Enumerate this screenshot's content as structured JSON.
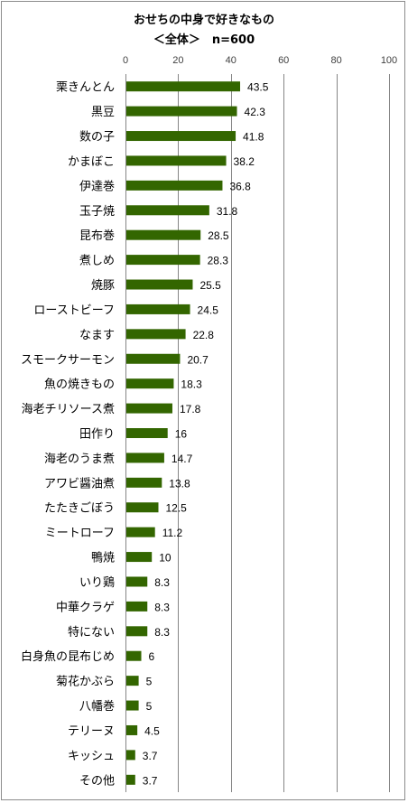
{
  "chart_data": {
    "type": "bar",
    "orientation": "horizontal",
    "title": "おせちの中身で好きなもの",
    "subtitle": "＜全体＞　n=600",
    "xlim": [
      0,
      100
    ],
    "xticks": [
      0,
      20,
      40,
      60,
      80,
      100
    ],
    "grid": true,
    "legend": "none",
    "bar_color": "#336600",
    "categories": [
      "栗きんとん",
      "黒豆",
      "数の子",
      "かまぼこ",
      "伊達巻",
      "玉子焼",
      "昆布巻",
      "煮しめ",
      "焼豚",
      "ローストビーフ",
      "なます",
      "スモークサーモン",
      "魚の焼きもの",
      "海老チリソース煮",
      "田作り",
      "海老のうま煮",
      "アワビ醤油煮",
      "たたきごぼう",
      "ミートローフ",
      "鴨焼",
      "いり鶏",
      "中華クラゲ",
      "特にない",
      "白身魚の昆布じめ",
      "菊花かぶら",
      "八幡巻",
      "テリーヌ",
      "キッシュ",
      "その他"
    ],
    "values": [
      43.5,
      42.3,
      41.8,
      38.2,
      36.8,
      31.8,
      28.5,
      28.3,
      25.5,
      24.5,
      22.8,
      20.7,
      18.3,
      17.8,
      16,
      14.7,
      13.8,
      12.5,
      11.2,
      10,
      8.3,
      8.3,
      8.3,
      6,
      5,
      5,
      4.5,
      3.7,
      3.7
    ],
    "value_labels": [
      "43.5",
      "42.3",
      "41.8",
      "38.2",
      "36.8",
      "31.8",
      "28.5",
      "28.3",
      "25.5",
      "24.5",
      "22.8",
      "20.7",
      "18.3",
      "17.8",
      "16",
      "14.7",
      "13.8",
      "12.5",
      "11.2",
      "10",
      "8.3",
      "8.3",
      "8.3",
      "6",
      "5",
      "5",
      "4.5",
      "3.7",
      "3.7"
    ]
  }
}
